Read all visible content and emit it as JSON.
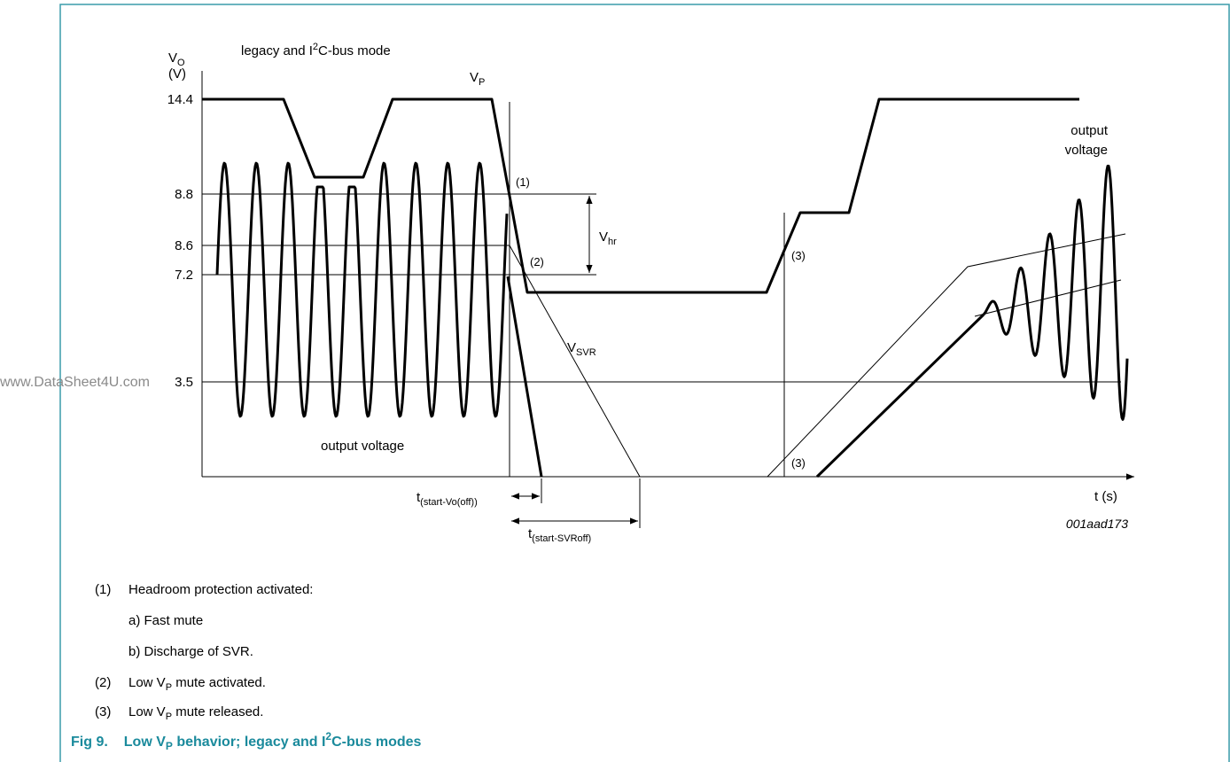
{
  "watermark": "www.DataSheet4U.com",
  "axis": {
    "y_title": {
      "main": "V",
      "sub": "O"
    },
    "y_unit": "(V)",
    "x_title": "t (s)",
    "y_labels": [
      "14.4",
      "8.8",
      "8.6",
      "7.2",
      "3.5"
    ]
  },
  "mode_label": {
    "pre": "legacy and I",
    "sup": "2",
    "post": "C-bus mode"
  },
  "labels": {
    "vp": {
      "main": "V",
      "sub": "P"
    },
    "vhr": {
      "main": "V",
      "sub": "hr"
    },
    "vsvr": {
      "main": "V",
      "sub": "SVR"
    },
    "marker_1": "(1)",
    "marker_2": "(2)",
    "marker_3a": "(3)",
    "marker_3b": "(3)",
    "output_voltage_left": "output voltage",
    "output_voltage_right": [
      "output",
      "voltage"
    ],
    "t_vo_off": {
      "main": "t",
      "sub": "(start-Vo(off))"
    },
    "t_svr_off": {
      "main": "t",
      "sub": "(start-SVRoff)"
    },
    "figure_id": "001aad173"
  },
  "notes": [
    {
      "num": "(1)",
      "text": "Headroom protection activated:"
    },
    {
      "text": "a) Fast mute"
    },
    {
      "text": "b) Discharge of SVR."
    },
    {
      "num": "(2)",
      "pre": "Low V",
      "sub": "P",
      "post": " mute activated."
    },
    {
      "num": "(3)",
      "pre": "Low V",
      "sub": "P",
      "post": " mute released."
    }
  ],
  "caption": {
    "num": "Fig 9.",
    "pre": "Low V",
    "sub": "P",
    "mid": " behavior; legacy and I",
    "sup": "2",
    "post": "C-bus modes"
  }
}
